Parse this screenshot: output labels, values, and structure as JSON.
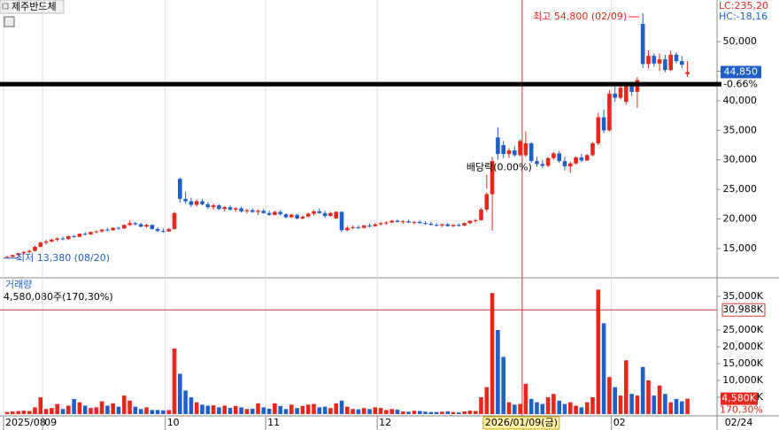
{
  "chart_data": {
    "type": "candlestick",
    "title": "제주반도체",
    "lc": "LC:235,20",
    "hc": "HC:-18,16",
    "up_color": "#e8261c",
    "down_color": "#1f5fc8",
    "ylim": [
      10200,
      57040
    ],
    "yticks": [
      {
        "value": 15000,
        "label": "15,000"
      },
      {
        "value": 20000,
        "label": "20,000"
      },
      {
        "value": 25000,
        "label": "25,000"
      },
      {
        "value": 30000,
        "label": "30,000"
      },
      {
        "value": 35000,
        "label": "35,000"
      },
      {
        "value": 40000,
        "label": "40,000"
      },
      {
        "value": 45000,
        "label": "45,000"
      },
      {
        "value": 50000,
        "label": "50,000"
      }
    ],
    "xticks": [
      {
        "value": 0,
        "label": "2025/08"
      },
      {
        "value": 7,
        "label": "09"
      },
      {
        "value": 29,
        "label": "10"
      },
      {
        "value": 47,
        "label": "11"
      },
      {
        "value": 67,
        "label": "12"
      },
      {
        "value": 93,
        "label": "2026/01/09(금)"
      },
      {
        "value": 109,
        "label": "02"
      },
      {
        "value": 129,
        "label": "02/24"
      }
    ],
    "grid": true,
    "current_price": {
      "value": 44850,
      "label": "44,850"
    },
    "change": "-0.66%",
    "drawn_line": 42800,
    "annotations": {
      "high": "최고 54,800 (02/09)",
      "low": "최저 13,380 (08/20)",
      "dividend": "배당락(0.00%)"
    },
    "ohlc": [
      [
        13500,
        13700,
        13380,
        13600
      ],
      [
        13600,
        14000,
        13500,
        13900
      ],
      [
        13900,
        14300,
        13800,
        14200
      ],
      [
        14200,
        14600,
        14000,
        14400
      ],
      [
        14400,
        14800,
        14200,
        14600
      ],
      [
        14600,
        15500,
        14500,
        15300
      ],
      [
        15300,
        16200,
        15200,
        16000
      ],
      [
        16000,
        16500,
        15700,
        16200
      ],
      [
        16200,
        16700,
        16000,
        16500
      ],
      [
        16500,
        16900,
        16200,
        16700
      ],
      [
        16700,
        17000,
        16400,
        16600
      ],
      [
        16600,
        17200,
        16500,
        17100
      ],
      [
        17100,
        17300,
        16800,
        17000
      ],
      [
        17000,
        17600,
        16900,
        17500
      ],
      [
        17500,
        17800,
        17200,
        17400
      ],
      [
        17400,
        17900,
        17300,
        17800
      ],
      [
        17800,
        18100,
        17600,
        17900
      ],
      [
        17900,
        18300,
        17700,
        18200
      ],
      [
        18200,
        18500,
        17900,
        18100
      ],
      [
        18100,
        18600,
        18000,
        18500
      ],
      [
        18500,
        18700,
        18200,
        18400
      ],
      [
        18400,
        19100,
        18300,
        19000
      ],
      [
        19000,
        19800,
        18800,
        19300
      ],
      [
        19300,
        19500,
        18900,
        19100
      ],
      [
        19100,
        19400,
        18600,
        18700
      ],
      [
        18700,
        19200,
        18500,
        19000
      ],
      [
        19000,
        19100,
        18200,
        18300
      ],
      [
        18300,
        18600,
        17800,
        18000
      ],
      [
        18000,
        18400,
        17700,
        17900
      ],
      [
        17900,
        18500,
        17800,
        18300
      ],
      [
        18300,
        21200,
        18200,
        21000
      ],
      [
        26800,
        27000,
        22800,
        23400
      ],
      [
        23400,
        24600,
        22600,
        23000
      ],
      [
        23000,
        23600,
        22000,
        22400
      ],
      [
        22400,
        23300,
        22100,
        23000
      ],
      [
        23000,
        23400,
        22300,
        22500
      ],
      [
        22500,
        22900,
        21700,
        22000
      ],
      [
        22000,
        22600,
        21600,
        22300
      ],
      [
        22300,
        22500,
        21500,
        21700
      ],
      [
        21700,
        22200,
        21300,
        22000
      ],
      [
        22000,
        22300,
        21400,
        21600
      ],
      [
        21600,
        22000,
        21200,
        21800
      ],
      [
        21800,
        22100,
        21100,
        21300
      ],
      [
        21300,
        21700,
        20900,
        21500
      ],
      [
        21500,
        21800,
        21000,
        21200
      ],
      [
        21200,
        21600,
        20700,
        21400
      ],
      [
        21400,
        21700,
        20900,
        21000
      ],
      [
        21000,
        21400,
        20500,
        20700
      ],
      [
        20700,
        21400,
        20600,
        21200
      ],
      [
        21200,
        21500,
        20600,
        20800
      ],
      [
        20800,
        21000,
        20100,
        20300
      ],
      [
        20300,
        20900,
        20200,
        20700
      ],
      [
        20700,
        20900,
        19900,
        20100
      ],
      [
        20100,
        20600,
        19900,
        20400
      ],
      [
        20400,
        21100,
        20300,
        20900
      ],
      [
        20900,
        21500,
        20600,
        21300
      ],
      [
        21300,
        21800,
        20900,
        21000
      ],
      [
        21000,
        21400,
        20200,
        20500
      ],
      [
        20500,
        21200,
        20400,
        21000
      ],
      [
        20100,
        21300,
        20000,
        21200
      ],
      [
        21200,
        21300,
        17800,
        18100
      ],
      [
        18100,
        18800,
        17900,
        18500
      ],
      [
        18500,
        18900,
        18300,
        18600
      ],
      [
        18600,
        18900,
        18300,
        18500
      ],
      [
        18500,
        19000,
        18400,
        18900
      ],
      [
        18900,
        19200,
        18600,
        18800
      ],
      [
        18800,
        19300,
        18700,
        19100
      ],
      [
        19100,
        19500,
        18900,
        19300
      ],
      [
        19300,
        19600,
        19000,
        19400
      ],
      [
        19400,
        19800,
        19300,
        19700
      ],
      [
        19700,
        19900,
        19400,
        19500
      ],
      [
        19500,
        19800,
        19200,
        19600
      ],
      [
        19600,
        19900,
        19300,
        19400
      ],
      [
        19400,
        19700,
        19100,
        19500
      ],
      [
        19500,
        19800,
        19200,
        19300
      ],
      [
        19300,
        19600,
        19000,
        19200
      ],
      [
        19200,
        19500,
        18900,
        19000
      ],
      [
        19000,
        19300,
        18700,
        18900
      ],
      [
        18900,
        19200,
        18600,
        19100
      ],
      [
        19100,
        19300,
        18700,
        18800
      ],
      [
        18800,
        19100,
        18600,
        19000
      ],
      [
        19000,
        19300,
        18700,
        18900
      ],
      [
        18900,
        19400,
        18800,
        19300
      ],
      [
        19300,
        19800,
        19100,
        19700
      ],
      [
        19700,
        20000,
        19400,
        19800
      ],
      [
        19800,
        21900,
        19700,
        21600
      ],
      [
        21600,
        24500,
        21200,
        24200
      ],
      [
        24200,
        30500,
        18000,
        29800
      ],
      [
        33800,
        35500,
        30000,
        31000
      ],
      [
        32500,
        33200,
        30300,
        31000
      ],
      [
        31000,
        32000,
        30300,
        31600
      ],
      [
        31600,
        32300,
        30500,
        30800
      ],
      [
        30800,
        33500,
        30600,
        33200
      ],
      [
        30800,
        34800,
        30500,
        32800
      ],
      [
        32800,
        33000,
        29500,
        29800
      ],
      [
        29800,
        30500,
        28800,
        29300
      ],
      [
        29300,
        30000,
        28600,
        29000
      ],
      [
        29000,
        30500,
        28800,
        30300
      ],
      [
        30300,
        31300,
        30000,
        31100
      ],
      [
        31100,
        31500,
        29500,
        29800
      ],
      [
        29800,
        30500,
        28200,
        28900
      ],
      [
        28900,
        29700,
        27800,
        29400
      ],
      [
        29400,
        30600,
        29200,
        30400
      ],
      [
        30400,
        31000,
        29600,
        29900
      ],
      [
        29900,
        31000,
        29800,
        30800
      ],
      [
        30800,
        33000,
        30600,
        32800
      ],
      [
        32800,
        38000,
        32500,
        37200
      ],
      [
        37200,
        38500,
        34500,
        35000
      ],
      [
        35000,
        41800,
        34800,
        41200
      ],
      [
        41200,
        42800,
        39800,
        40500
      ],
      [
        40500,
        42500,
        40200,
        42200
      ],
      [
        39800,
        43000,
        39400,
        42500
      ],
      [
        42500,
        43200,
        40800,
        41500
      ],
      [
        41500,
        44000,
        38800,
        43500
      ],
      [
        53000,
        54800,
        45500,
        46200
      ],
      [
        46200,
        48500,
        45500,
        47600
      ],
      [
        47600,
        48000,
        45800,
        46300
      ],
      [
        46300,
        48000,
        45000,
        47000
      ],
      [
        47000,
        47800,
        44800,
        45200
      ],
      [
        45200,
        48500,
        45000,
        47800
      ],
      [
        47800,
        48200,
        46300,
        46700
      ],
      [
        46700,
        47600,
        45500,
        46100
      ],
      [
        44500,
        46700,
        44000,
        44850
      ]
    ],
    "volume_title": "거래량",
    "volume_text": "4,580,080주(170,30%)",
    "volume_ylim": [
      0,
      40000
    ],
    "volume_ticks": [
      {
        "value": 5000,
        "label": "5,000K"
      },
      {
        "value": 10000,
        "label": "10,000K"
      },
      {
        "value": 15000,
        "label": "15,000K"
      },
      {
        "value": 20000,
        "label": "20,000K"
      },
      {
        "value": 25000,
        "label": "25,000K"
      },
      {
        "value": 35000,
        "label": "35,000K"
      }
    ],
    "volume_ref": {
      "value": 30988,
      "label": "30,988K"
    },
    "volume_last": {
      "value": 4580,
      "label": "4,580K"
    },
    "volume_ratio": "170,30%",
    "volume": [
      600,
      800,
      900,
      1000,
      900,
      2000,
      5000,
      1500,
      1800,
      3000,
      1500,
      2500,
      4500,
      3500,
      2500,
      1800,
      2000,
      3800,
      2500,
      3200,
      2200,
      5500,
      4000,
      2200,
      1500,
      2000,
      1200,
      1200,
      1100,
      1200,
      19500,
      12000,
      7000,
      5000,
      3500,
      2800,
      2500,
      2600,
      2000,
      2500,
      1800,
      2400,
      2000,
      1500,
      1600,
      3200,
      2000,
      1600,
      3200,
      2400,
      1500,
      2800,
      1800,
      2400,
      2800,
      3000,
      2000,
      2200,
      1800,
      3200,
      4000,
      2200,
      1500,
      1400,
      1800,
      1500,
      2000,
      1800,
      1200,
      1500,
      1300,
      800,
      700,
      1000,
      900,
      700,
      600,
      600,
      700,
      800,
      600,
      500,
      800,
      1000,
      900,
      5000,
      8000,
      36000,
      25000,
      17000,
      3500,
      2800,
      3000,
      9000,
      4500,
      3500,
      3000,
      5000,
      6000,
      4000,
      3000,
      3500,
      2500,
      2000,
      3500,
      5000,
      37000,
      27000,
      11000,
      8000,
      5500,
      16000,
      6000,
      5500,
      14000,
      10000,
      5500,
      8500,
      6000,
      3500,
      4500,
      3800,
      4580
    ]
  }
}
